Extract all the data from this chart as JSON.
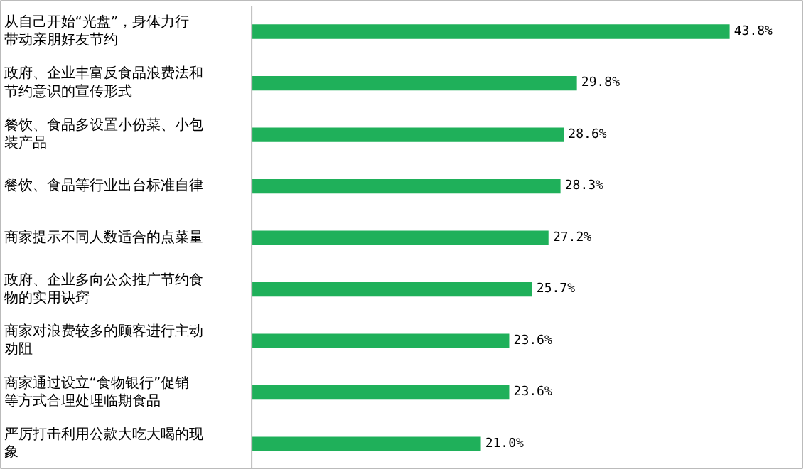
{
  "chart_data": {
    "type": "bar",
    "orientation": "horizontal",
    "categories": [
      "从自己开始“光盘”，身体力行带动亲朋好友节约",
      "政府、企业丰富反食品浪费法和节约意识的宣传形式",
      "餐饮、食品多设置小份菜、小包装产品",
      "餐饮、食品等行业出台标准自律",
      "商家提示不同人数适合的点菜量",
      "政府、企业多向公众推广节约食物的实用诀窍",
      "商家对浪费较多的顾客进行主动劝阻",
      "商家通过设立“食物银行”促销等方式合理处理临期食品",
      "严厉打击利用公款大吃大喝的现象"
    ],
    "values": [
      43.8,
      29.8,
      28.6,
      28.3,
      27.2,
      25.7,
      23.6,
      23.6,
      21.0
    ],
    "value_labels": [
      "43.8%",
      "29.8%",
      "28.6%",
      "28.3%",
      "27.2%",
      "25.7%",
      "23.6%",
      "23.6%",
      "21.0%"
    ],
    "color": "#1fb05a",
    "xlim": [
      0,
      50.6
    ]
  }
}
